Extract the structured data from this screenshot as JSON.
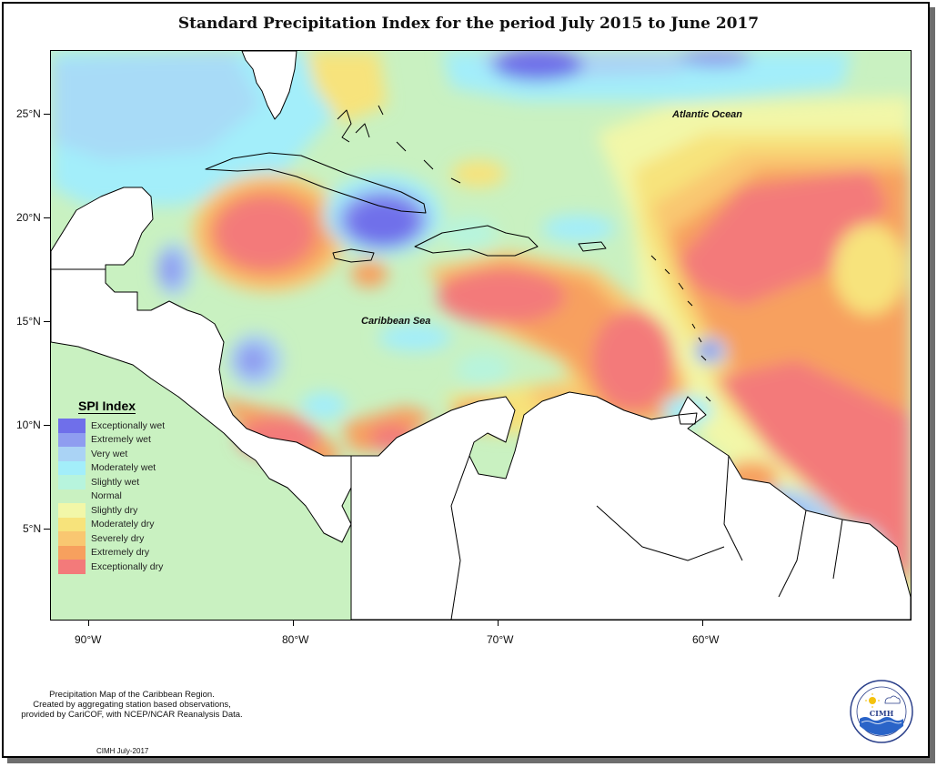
{
  "title": "Standard Precipitation Index for the period July 2015 to June 2017",
  "map": {
    "ocean_labels": {
      "atlantic": "Atlantic Ocean",
      "caribbean": "Caribbean Sea"
    },
    "lat_ticks": [
      "25°N",
      "20°N",
      "15°N",
      "10°N",
      "5°N"
    ],
    "lon_ticks": [
      "90°W",
      "80°W",
      "70°W",
      "60°W"
    ],
    "extent": {
      "lon": [
        -92,
        -50
      ],
      "lat": [
        1,
        28
      ]
    }
  },
  "legend": {
    "title": "SPI Index",
    "items": [
      {
        "label": "Exceptionally wet",
        "color": "#6f6fea"
      },
      {
        "label": "Extremely wet",
        "color": "#8f9df0"
      },
      {
        "label": "Very wet",
        "color": "#aad3f5"
      },
      {
        "label": "Moderately wet",
        "color": "#a3eefa"
      },
      {
        "label": "Slightly wet",
        "color": "#b7f4dd"
      },
      {
        "label": "Normal",
        "color": "#c9f1c1"
      },
      {
        "label": "Slightly dry",
        "color": "#f2f7a8"
      },
      {
        "label": "Moderately dry",
        "color": "#f7e37b"
      },
      {
        "label": "Severely dry",
        "color": "#f9c771"
      },
      {
        "label": "Extremely dry",
        "color": "#f7a05e"
      },
      {
        "label": "Exceptionally dry",
        "color": "#f37a7a"
      }
    ]
  },
  "footnote": {
    "line1": "Precipitation Map of the Caribbean Region.",
    "line2": "Created by aggregating station based observations,",
    "line3": "provided by CariCOF, with NCEP/NCAR Reanalysis Data."
  },
  "credit": "CIMH July-2017",
  "logo": {
    "text": "CIMH",
    "icon": "cimh-logo-icon"
  }
}
